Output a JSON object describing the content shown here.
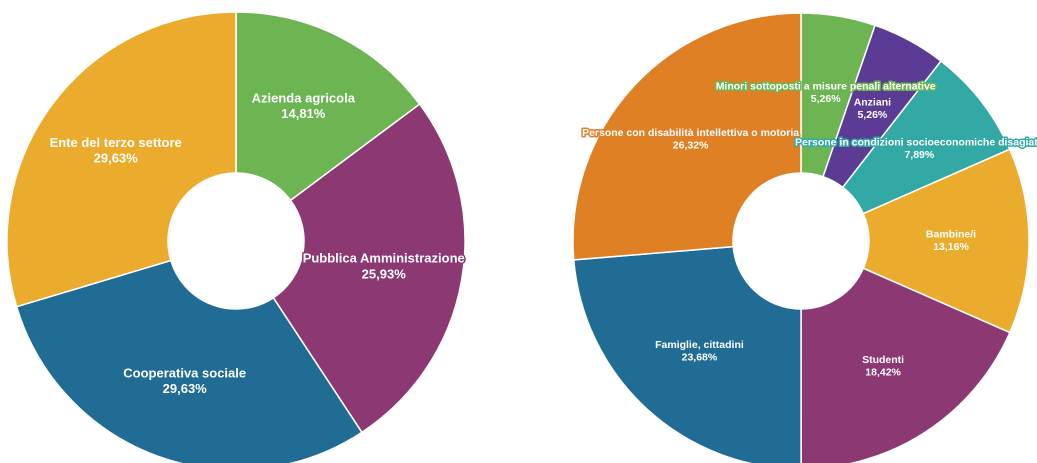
{
  "chart_data": [
    {
      "type": "pie",
      "categories": [
        "Azienda agricola",
        "Pubblica Amministrazione",
        "Cooperativa sociale",
        "Ente del terzo settore"
      ],
      "values": [
        14.81,
        25.93,
        29.63,
        29.63
      ],
      "value_labels": [
        "14,81%",
        "25,93%",
        "29,63%",
        "29,63%"
      ],
      "colors": [
        "#6db553",
        "#8c3872",
        "#206c95",
        "#ebab2c"
      ]
    },
    {
      "type": "pie",
      "categories": [
        "Minori sottoposti a misure penali alternative",
        "Anziani",
        "Persone in condizioni socioeconomiche disagiate",
        "Bambine/i",
        "Studenti",
        "Famiglie, cittadini",
        "Persone con disabilità intellettiva o motoria"
      ],
      "values": [
        5.26,
        5.26,
        7.89,
        13.16,
        18.42,
        23.68,
        26.32
      ],
      "value_labels": [
        "5,26%",
        "5,26%",
        "7,89%",
        "13,16%",
        "18,42%",
        "23,68%",
        "26,32%"
      ],
      "colors": [
        "#6db553",
        "#5c3b94",
        "#32a9a5",
        "#ebab2c",
        "#8c3872",
        "#206c95",
        "#e08025"
      ]
    }
  ]
}
